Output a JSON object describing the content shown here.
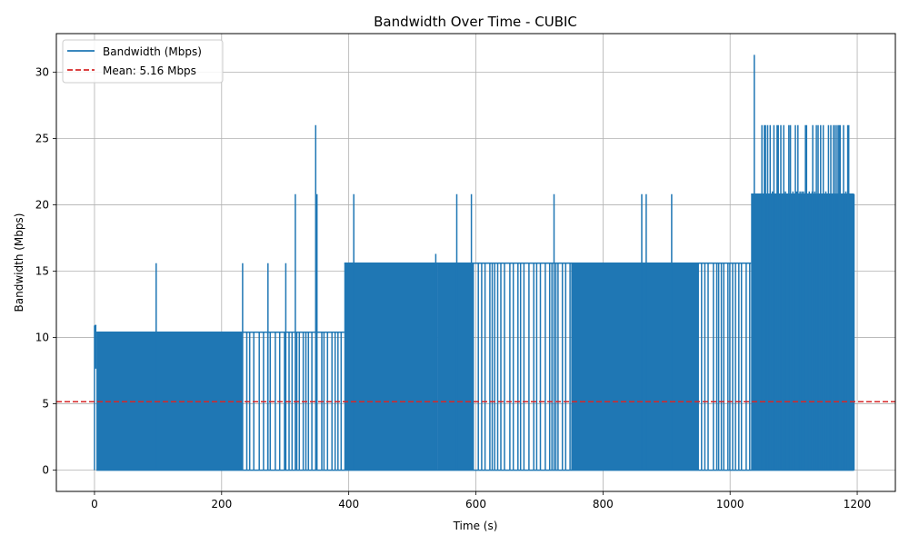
{
  "chart_data": {
    "type": "line",
    "title": "Bandwidth Over Time - CUBIC",
    "xlabel": "Time (s)",
    "ylabel": "Bandwidth (Mbps)",
    "xlim": [
      -60,
      1260
    ],
    "ylim": [
      -1.6,
      32.9
    ],
    "xticks": [
      0,
      200,
      400,
      600,
      800,
      1000,
      1200
    ],
    "yticks": [
      0,
      5,
      10,
      15,
      20,
      25,
      30
    ],
    "grid": true,
    "legend_position": "upper left",
    "series": [
      {
        "name": "Bandwidth (Mbps)",
        "color": "#1f77b4",
        "style": "solid",
        "segments": [
          {
            "x0": 0,
            "x1": 3,
            "high": 10.9,
            "low": 7.7
          },
          {
            "x0": 3,
            "x1": 233,
            "high": 10.4,
            "low": 0
          },
          {
            "x0": 233,
            "x1": 342,
            "high": 10.4,
            "low": 0,
            "sparse": true
          },
          {
            "x0": 342,
            "x1": 393,
            "high": 10.4,
            "low": 0,
            "sparse": true
          },
          {
            "x0": 393,
            "x1": 540,
            "high": 15.6,
            "low": 0
          },
          {
            "x0": 540,
            "x1": 596,
            "high": 15.6,
            "low": 0
          },
          {
            "x0": 596,
            "x1": 750,
            "high": 15.6,
            "low": 0,
            "sparse": true
          },
          {
            "x0": 750,
            "x1": 950,
            "high": 15.6,
            "low": 0
          },
          {
            "x0": 950,
            "x1": 1033,
            "high": 15.6,
            "low": 0,
            "sparse": true
          },
          {
            "x0": 1033,
            "x1": 1195,
            "high": 20.8,
            "low": 0
          }
        ],
        "spikes": [
          {
            "x": 0,
            "y": 10.9
          },
          {
            "x": 97,
            "y": 15.6
          },
          {
            "x": 233,
            "y": 15.6
          },
          {
            "x": 273,
            "y": 15.6
          },
          {
            "x": 301,
            "y": 15.6
          },
          {
            "x": 316,
            "y": 20.8
          },
          {
            "x": 348,
            "y": 26.0
          },
          {
            "x": 350,
            "y": 20.8
          },
          {
            "x": 408,
            "y": 20.8
          },
          {
            "x": 537,
            "y": 16.3
          },
          {
            "x": 570,
            "y": 20.8
          },
          {
            "x": 593,
            "y": 20.8
          },
          {
            "x": 723,
            "y": 20.8
          },
          {
            "x": 861,
            "y": 20.8
          },
          {
            "x": 868,
            "y": 20.8
          },
          {
            "x": 908,
            "y": 20.8
          },
          {
            "x": 1038,
            "y": 31.3
          },
          {
            "x": 1050,
            "y": 26.0
          },
          {
            "x": 1095,
            "y": 26.0
          },
          {
            "x": 1130,
            "y": 26.0
          },
          {
            "x": 1185,
            "y": 26.0
          },
          {
            "x": 1195,
            "y": 20.8
          }
        ],
        "dense_spike_band": {
          "x0": 1050,
          "x1": 1190,
          "y": 26.0
        }
      },
      {
        "name": "Mean: 5.16 Mbps",
        "color": "#d62728",
        "style": "dashed",
        "value": 5.16
      }
    ]
  }
}
